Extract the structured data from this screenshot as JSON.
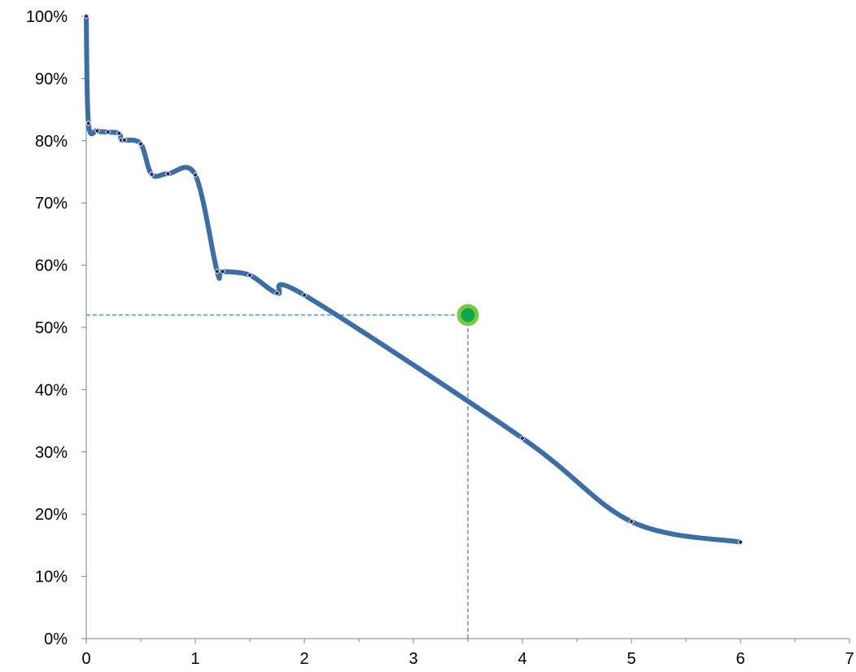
{
  "chart_data": {
    "type": "line",
    "xlim": [
      0,
      7
    ],
    "ylim": [
      0,
      1
    ],
    "x_ticks": [
      0,
      1,
      2,
      3,
      4,
      5,
      6,
      7
    ],
    "y_ticks": [
      0,
      0.1,
      0.2,
      0.3,
      0.4,
      0.5,
      0.6,
      0.7,
      0.8,
      0.9,
      1.0
    ],
    "x_tick_labels": [
      "0",
      "1",
      "2",
      "3",
      "4",
      "5",
      "6",
      "7"
    ],
    "y_tick_labels": [
      "0%",
      "10%",
      "20%",
      "30%",
      "40%",
      "50%",
      "60%",
      "70%",
      "80%",
      "90%",
      "100%"
    ],
    "grid": false,
    "legend": "none",
    "series": [
      {
        "color": "#3A6EA5",
        "marker_color": "#1F1F6E",
        "x": [
          0,
          0.02,
          0.1,
          0.2,
          0.3,
          0.32,
          0.35,
          0.5,
          0.6,
          0.75,
          1.0,
          1.2,
          1.25,
          1.5,
          1.75,
          2.0,
          4.0,
          5.0,
          6.0
        ],
        "y": [
          1.0,
          0.828,
          0.816,
          0.814,
          0.812,
          0.801,
          0.801,
          0.795,
          0.746,
          0.747,
          0.745,
          0.59,
          0.59,
          0.584,
          0.555,
          0.552,
          0.322,
          0.188,
          0.155
        ]
      }
    ],
    "highlight": {
      "x": 3.5,
      "y": 0.52,
      "fill": "#0FA84A",
      "ring": "#7AC943",
      "guide_color": "#4A7EBB"
    }
  }
}
